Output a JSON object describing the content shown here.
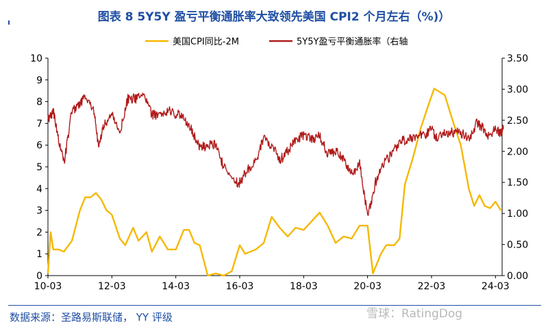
{
  "title": "图表 8 5Y5Y 盈亏平衡通胀率大致领先美国 CPI2 个月左右（%)）",
  "source": "数据来源：圣路易斯联储， YY 评级",
  "watermark": "雪球：RatingDog",
  "chart_data": {
    "type": "line",
    "legend_position": "top-center",
    "x_ticks": [
      "10-03",
      "12-03",
      "14-03",
      "16-03",
      "18-03",
      "20-03",
      "22-03",
      "24-03"
    ],
    "y_left": {
      "range": [
        0,
        10
      ],
      "ticks": [
        "0",
        "1",
        "2",
        "3",
        "4",
        "5",
        "6",
        "7",
        "8",
        "9",
        "10"
      ]
    },
    "y_right": {
      "range": [
        0,
        3.5
      ],
      "ticks": [
        "0.00",
        "0.50",
        "1.00",
        "1.50",
        "2.00",
        "2.50",
        "3.00",
        "3.50"
      ]
    },
    "series": [
      {
        "name": "美国CPI同比-2M",
        "axis": "left",
        "color": "#f5b800",
        "points": [
          [
            "2010-03",
            0.1
          ],
          [
            "2010-04",
            2.0
          ],
          [
            "2010-05",
            1.2
          ],
          [
            "2010-07",
            1.2
          ],
          [
            "2010-09",
            1.1
          ],
          [
            "2010-12",
            1.6
          ],
          [
            "2011-03",
            3.0
          ],
          [
            "2011-05",
            3.6
          ],
          [
            "2011-07",
            3.6
          ],
          [
            "2011-09",
            3.8
          ],
          [
            "2011-11",
            3.5
          ],
          [
            "2012-01",
            3.0
          ],
          [
            "2012-03",
            2.8
          ],
          [
            "2012-06",
            1.7
          ],
          [
            "2012-08",
            1.4
          ],
          [
            "2012-11",
            2.2
          ],
          [
            "2013-01",
            1.6
          ],
          [
            "2013-04",
            2.0
          ],
          [
            "2013-06",
            1.1
          ],
          [
            "2013-09",
            1.8
          ],
          [
            "2013-12",
            1.2
          ],
          [
            "2014-03",
            1.2
          ],
          [
            "2014-06",
            2.1
          ],
          [
            "2014-08",
            2.1
          ],
          [
            "2014-10",
            1.5
          ],
          [
            "2014-12",
            1.4
          ],
          [
            "2015-03",
            0.0
          ],
          [
            "2015-06",
            0.1
          ],
          [
            "2015-09",
            0.0
          ],
          [
            "2015-12",
            0.2
          ],
          [
            "2016-03",
            1.4
          ],
          [
            "2016-05",
            1.0
          ],
          [
            "2016-09",
            1.2
          ],
          [
            "2016-12",
            1.5
          ],
          [
            "2017-03",
            2.7
          ],
          [
            "2017-06",
            2.2
          ],
          [
            "2017-09",
            1.8
          ],
          [
            "2017-12",
            2.2
          ],
          [
            "2018-03",
            2.1
          ],
          [
            "2018-06",
            2.5
          ],
          [
            "2018-09",
            2.9
          ],
          [
            "2018-12",
            2.3
          ],
          [
            "2019-03",
            1.5
          ],
          [
            "2019-06",
            1.8
          ],
          [
            "2019-09",
            1.7
          ],
          [
            "2019-12",
            2.3
          ],
          [
            "2020-03",
            2.3
          ],
          [
            "2020-05",
            0.1
          ],
          [
            "2020-08",
            1.0
          ],
          [
            "2020-10",
            1.4
          ],
          [
            "2021-01",
            1.4
          ],
          [
            "2021-03",
            1.7
          ],
          [
            "2021-05",
            4.2
          ],
          [
            "2021-08",
            5.4
          ],
          [
            "2021-11",
            6.8
          ],
          [
            "2022-02",
            7.9
          ],
          [
            "2022-04",
            8.6
          ],
          [
            "2022-08",
            8.3
          ],
          [
            "2022-11",
            7.1
          ],
          [
            "2023-02",
            6.0
          ],
          [
            "2023-05",
            4.0
          ],
          [
            "2023-07",
            3.2
          ],
          [
            "2023-09",
            3.7
          ],
          [
            "2023-11",
            3.2
          ],
          [
            "2024-01",
            3.1
          ],
          [
            "2024-03",
            3.4
          ],
          [
            "2024-05",
            3.0
          ]
        ]
      },
      {
        "name": "5Y5Y盈亏平衡通胀率（右轴",
        "axis": "right",
        "color": "#b01a1a",
        "points": [
          [
            "2010-03",
            2.5
          ],
          [
            "2010-05",
            2.65
          ],
          [
            "2010-07",
            2.2
          ],
          [
            "2010-09",
            1.8
          ],
          [
            "2010-12",
            2.65
          ],
          [
            "2011-03",
            2.75
          ],
          [
            "2011-05",
            2.9
          ],
          [
            "2011-08",
            2.7
          ],
          [
            "2011-10",
            2.1
          ],
          [
            "2011-12",
            2.4
          ],
          [
            "2012-03",
            2.6
          ],
          [
            "2012-06",
            2.3
          ],
          [
            "2012-09",
            2.85
          ],
          [
            "2012-12",
            2.85
          ],
          [
            "2013-03",
            2.9
          ],
          [
            "2013-06",
            2.6
          ],
          [
            "2013-09",
            2.55
          ],
          [
            "2013-12",
            2.65
          ],
          [
            "2014-03",
            2.6
          ],
          [
            "2014-06",
            2.55
          ],
          [
            "2014-09",
            2.35
          ],
          [
            "2014-12",
            2.05
          ],
          [
            "2015-03",
            2.1
          ],
          [
            "2015-06",
            2.1
          ],
          [
            "2015-09",
            1.75
          ],
          [
            "2016-01",
            1.5
          ],
          [
            "2016-03",
            1.5
          ],
          [
            "2016-06",
            1.7
          ],
          [
            "2016-09",
            1.85
          ],
          [
            "2016-12",
            2.2
          ],
          [
            "2017-03",
            2.1
          ],
          [
            "2017-06",
            1.85
          ],
          [
            "2017-09",
            2.0
          ],
          [
            "2017-12",
            2.2
          ],
          [
            "2018-03",
            2.25
          ],
          [
            "2018-06",
            2.2
          ],
          [
            "2018-09",
            2.25
          ],
          [
            "2018-12",
            1.95
          ],
          [
            "2019-03",
            2.0
          ],
          [
            "2019-06",
            1.85
          ],
          [
            "2019-09",
            1.65
          ],
          [
            "2019-12",
            1.8
          ],
          [
            "2020-03",
            0.95
          ],
          [
            "2020-06",
            1.5
          ],
          [
            "2020-09",
            1.8
          ],
          [
            "2020-12",
            1.95
          ],
          [
            "2021-03",
            2.15
          ],
          [
            "2021-06",
            2.2
          ],
          [
            "2021-09",
            2.25
          ],
          [
            "2021-12",
            2.25
          ],
          [
            "2022-03",
            2.35
          ],
          [
            "2022-05",
            2.2
          ],
          [
            "2022-08",
            2.3
          ],
          [
            "2022-11",
            2.3
          ],
          [
            "2023-02",
            2.3
          ],
          [
            "2023-05",
            2.2
          ],
          [
            "2023-08",
            2.45
          ],
          [
            "2023-10",
            2.4
          ],
          [
            "2023-12",
            2.25
          ],
          [
            "2024-03",
            2.35
          ],
          [
            "2024-05",
            2.3
          ],
          [
            "2024-06",
            2.4
          ]
        ]
      }
    ]
  }
}
